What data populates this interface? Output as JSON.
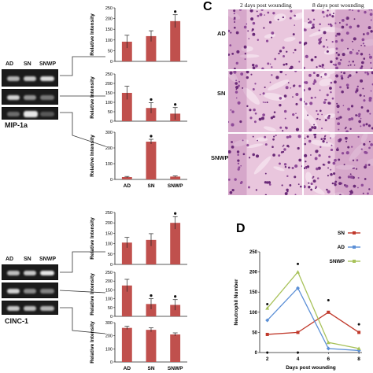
{
  "panels": {
    "c_letter": "C",
    "d_letter": "D"
  },
  "gel_top": {
    "lanes": [
      "AD",
      "SN",
      "SNWP"
    ],
    "gene": "MIP-1a"
  },
  "gel_bottom": {
    "lanes": [
      "AD",
      "SN",
      "SNWP"
    ],
    "gene": "CINC-1"
  },
  "histology": {
    "col_headers": [
      "2 days post wounding",
      "8 days post wounding"
    ],
    "row_labels": [
      "AD",
      "SN",
      "SNWP"
    ]
  },
  "chart_data": [
    {
      "id": "mip_chart_1",
      "type": "bar",
      "categories": [
        "AD",
        "SN",
        "SNWP"
      ],
      "values": [
        92,
        118,
        188
      ],
      "errors": [
        30,
        25,
        30
      ],
      "significant": [
        false,
        false,
        true
      ],
      "ylabel": "Relative Intensity",
      "ylim": [
        0,
        250
      ],
      "ticks": [
        0,
        50,
        100,
        150,
        200,
        250
      ],
      "show_xticks": false
    },
    {
      "id": "mip_chart_2",
      "type": "bar",
      "categories": [
        "AD",
        "SN",
        "SNWP"
      ],
      "values": [
        150,
        70,
        40
      ],
      "errors": [
        35,
        28,
        32
      ],
      "significant": [
        false,
        true,
        true
      ],
      "ylabel": "Relative Intensity",
      "ylim": [
        0,
        250
      ],
      "ticks": [
        0,
        50,
        100,
        150,
        200,
        250
      ],
      "show_xticks": false
    },
    {
      "id": "mip_chart_3",
      "type": "bar",
      "categories": [
        "AD",
        "SN",
        "SNWP"
      ],
      "values": [
        15,
        240,
        18
      ],
      "errors": [
        4,
        15,
        4
      ],
      "significant": [
        false,
        true,
        false
      ],
      "ylabel": "Relative Intensity",
      "ylim": [
        0,
        300
      ],
      "ticks": [
        0,
        100,
        200,
        300
      ],
      "show_xticks": true
    },
    {
      "id": "cinc_chart_1",
      "type": "bar",
      "categories": [
        "AD",
        "SN",
        "SNWP"
      ],
      "values": [
        105,
        118,
        200
      ],
      "errors": [
        25,
        30,
        30
      ],
      "significant": [
        false,
        false,
        true
      ],
      "ylabel": "Relative Intensity",
      "ylim": [
        0,
        250
      ],
      "ticks": [
        0,
        50,
        100,
        150,
        200,
        250
      ],
      "show_xticks": false
    },
    {
      "id": "cinc_chart_2",
      "type": "bar",
      "categories": [
        "AD",
        "SN",
        "SNWP"
      ],
      "values": [
        175,
        70,
        65
      ],
      "errors": [
        35,
        30,
        30
      ],
      "significant": [
        false,
        true,
        true
      ],
      "ylabel": "Relative Intensity",
      "ylim": [
        0,
        250
      ],
      "ticks": [
        0,
        50,
        100,
        150,
        200,
        250
      ],
      "show_xticks": false
    },
    {
      "id": "cinc_chart_3",
      "type": "bar",
      "categories": [
        "AD",
        "SN",
        "SNWP"
      ],
      "values": [
        260,
        245,
        210
      ],
      "errors": [
        12,
        15,
        12
      ],
      "significant": [
        false,
        false,
        false
      ],
      "ylabel": "Relative Intensity",
      "ylim": [
        0,
        300
      ],
      "ticks": [
        0,
        100,
        200,
        300
      ],
      "show_xticks": true
    },
    {
      "id": "neutrophil_chart",
      "type": "line",
      "x": [
        2,
        4,
        6,
        8
      ],
      "xlabel": "Days post wounding",
      "ylabel": "Neutrophil Number",
      "xlim": [
        1.5,
        8.2
      ],
      "ylim": [
        0,
        250
      ],
      "yticks": [
        0,
        50,
        100,
        150,
        200,
        250
      ],
      "xticks": [
        2,
        4,
        6,
        8
      ],
      "series": [
        {
          "name": "SN",
          "values": [
            45,
            50,
            100,
            50
          ],
          "color": "#c0392b"
        },
        {
          "name": "AD",
          "values": [
            80,
            160,
            10,
            5
          ],
          "color": "#5b8fd6"
        },
        {
          "name": "SNWP",
          "values": [
            110,
            200,
            25,
            10
          ],
          "color": "#a8c25a"
        }
      ],
      "significant_points": [
        [
          2,
          120
        ],
        [
          4,
          220
        ],
        [
          6,
          130
        ],
        [
          8,
          70
        ],
        [
          2,
          0
        ],
        [
          4,
          0
        ]
      ]
    }
  ],
  "colors": {
    "bar": "#c0504d",
    "arrow": "#333333"
  }
}
